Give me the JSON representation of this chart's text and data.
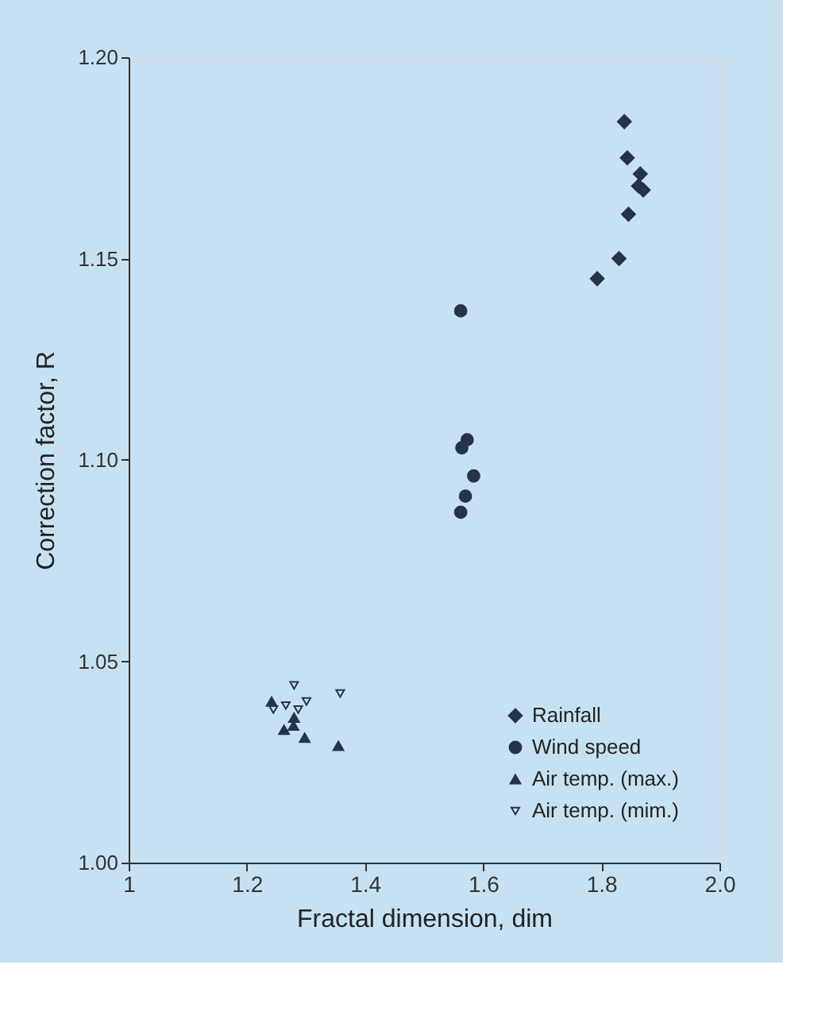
{
  "chart_data": {
    "type": "scatter",
    "xlabel": "Fractal dimension, dim",
    "ylabel": "Correction factor, R",
    "xlim": [
      1,
      2
    ],
    "xticks": [
      {
        "value": 1,
        "label": "1"
      },
      1.2,
      1.4,
      1.6,
      1.8,
      {
        "value": 2,
        "label": "2.0"
      }
    ],
    "ylim": [
      1,
      1.2
    ],
    "yticks": [
      {
        "value": 1,
        "label": "1.00"
      },
      1.05,
      {
        "value": 1.1,
        "label": "1.10"
      },
      1.15,
      {
        "value": 1.2,
        "label": "1.20"
      }
    ],
    "grid": false,
    "legend": "bottom right",
    "series": [
      {
        "name": "Rainfall",
        "color": "#263447",
        "marker": "diamond",
        "x": [
          1.839,
          1.844,
          1.866,
          1.863,
          1.871,
          1.846,
          1.83,
          1.793
        ],
        "values": [
          1.184,
          1.175,
          1.171,
          1.168,
          1.167,
          1.161,
          1.15,
          1.145
        ]
      },
      {
        "name": "Wind speed",
        "color": "#263447",
        "marker": "circle",
        "x": [
          1.562,
          1.573,
          1.564,
          1.584,
          1.57,
          1.562
        ],
        "values": [
          1.137,
          1.105,
          1.103,
          1.096,
          1.091,
          1.087
        ]
      },
      {
        "name": "Air temp. (max.)",
        "color": "#263447",
        "marker": "triangle",
        "x": [
          1.242,
          1.28,
          1.279,
          1.263,
          1.298,
          1.355
        ],
        "values": [
          1.04,
          1.036,
          1.034,
          1.033,
          1.031,
          1.029
        ]
      },
      {
        "name": "Air temp. (mim.)",
        "color": "#263447",
        "marker": "triangle_down_open",
        "x": [
          1.245,
          1.28,
          1.266,
          1.287,
          1.301,
          1.358
        ],
        "values": [
          1.038,
          1.044,
          1.039,
          1.038,
          1.04,
          1.042
        ]
      }
    ]
  }
}
